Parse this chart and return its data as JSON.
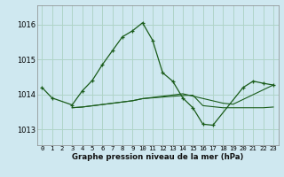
{
  "title": "Graphe pression niveau de la mer (hPa)",
  "bg_color": "#cfe8f0",
  "grid_color": "#b0d4c8",
  "line_color": "#1a5c1a",
  "xlim": [
    -0.5,
    23.5
  ],
  "ylim": [
    1012.55,
    1016.55
  ],
  "yticks": [
    1013,
    1014,
    1015,
    1016
  ],
  "xtick_labels": [
    "0",
    "1",
    "2",
    "3",
    "4",
    "5",
    "6",
    "7",
    "8",
    "9",
    "10",
    "11",
    "12",
    "13",
    "14",
    "15",
    "16",
    "17",
    "18",
    "19",
    "20",
    "21",
    "22",
    "23"
  ],
  "s1_x": [
    0,
    1,
    3,
    4,
    5,
    6,
    7,
    8,
    9,
    10,
    11,
    12,
    13,
    14,
    15,
    16,
    17,
    20,
    21,
    22,
    23
  ],
  "s1_y": [
    1014.2,
    1013.9,
    1013.7,
    1014.1,
    1014.4,
    1014.85,
    1015.25,
    1015.65,
    1015.82,
    1016.05,
    1015.55,
    1014.62,
    1014.38,
    1013.9,
    1013.62,
    1013.15,
    1013.12,
    1014.2,
    1014.38,
    1014.32,
    1014.27
  ],
  "s2_x": [
    3,
    4,
    9,
    10,
    14,
    15,
    16,
    17,
    18,
    19,
    20,
    21,
    22,
    23
  ],
  "s2_y": [
    1013.62,
    1013.64,
    1013.82,
    1013.88,
    1013.97,
    1013.98,
    1013.68,
    1013.65,
    1013.62,
    1013.62,
    1013.62,
    1013.62,
    1013.62,
    1013.64
  ],
  "s3_x": [
    3,
    4,
    9,
    10,
    14,
    18,
    19,
    23
  ],
  "s3_y": [
    1013.62,
    1013.64,
    1013.82,
    1013.88,
    1014.02,
    1013.75,
    1013.72,
    1014.27
  ]
}
